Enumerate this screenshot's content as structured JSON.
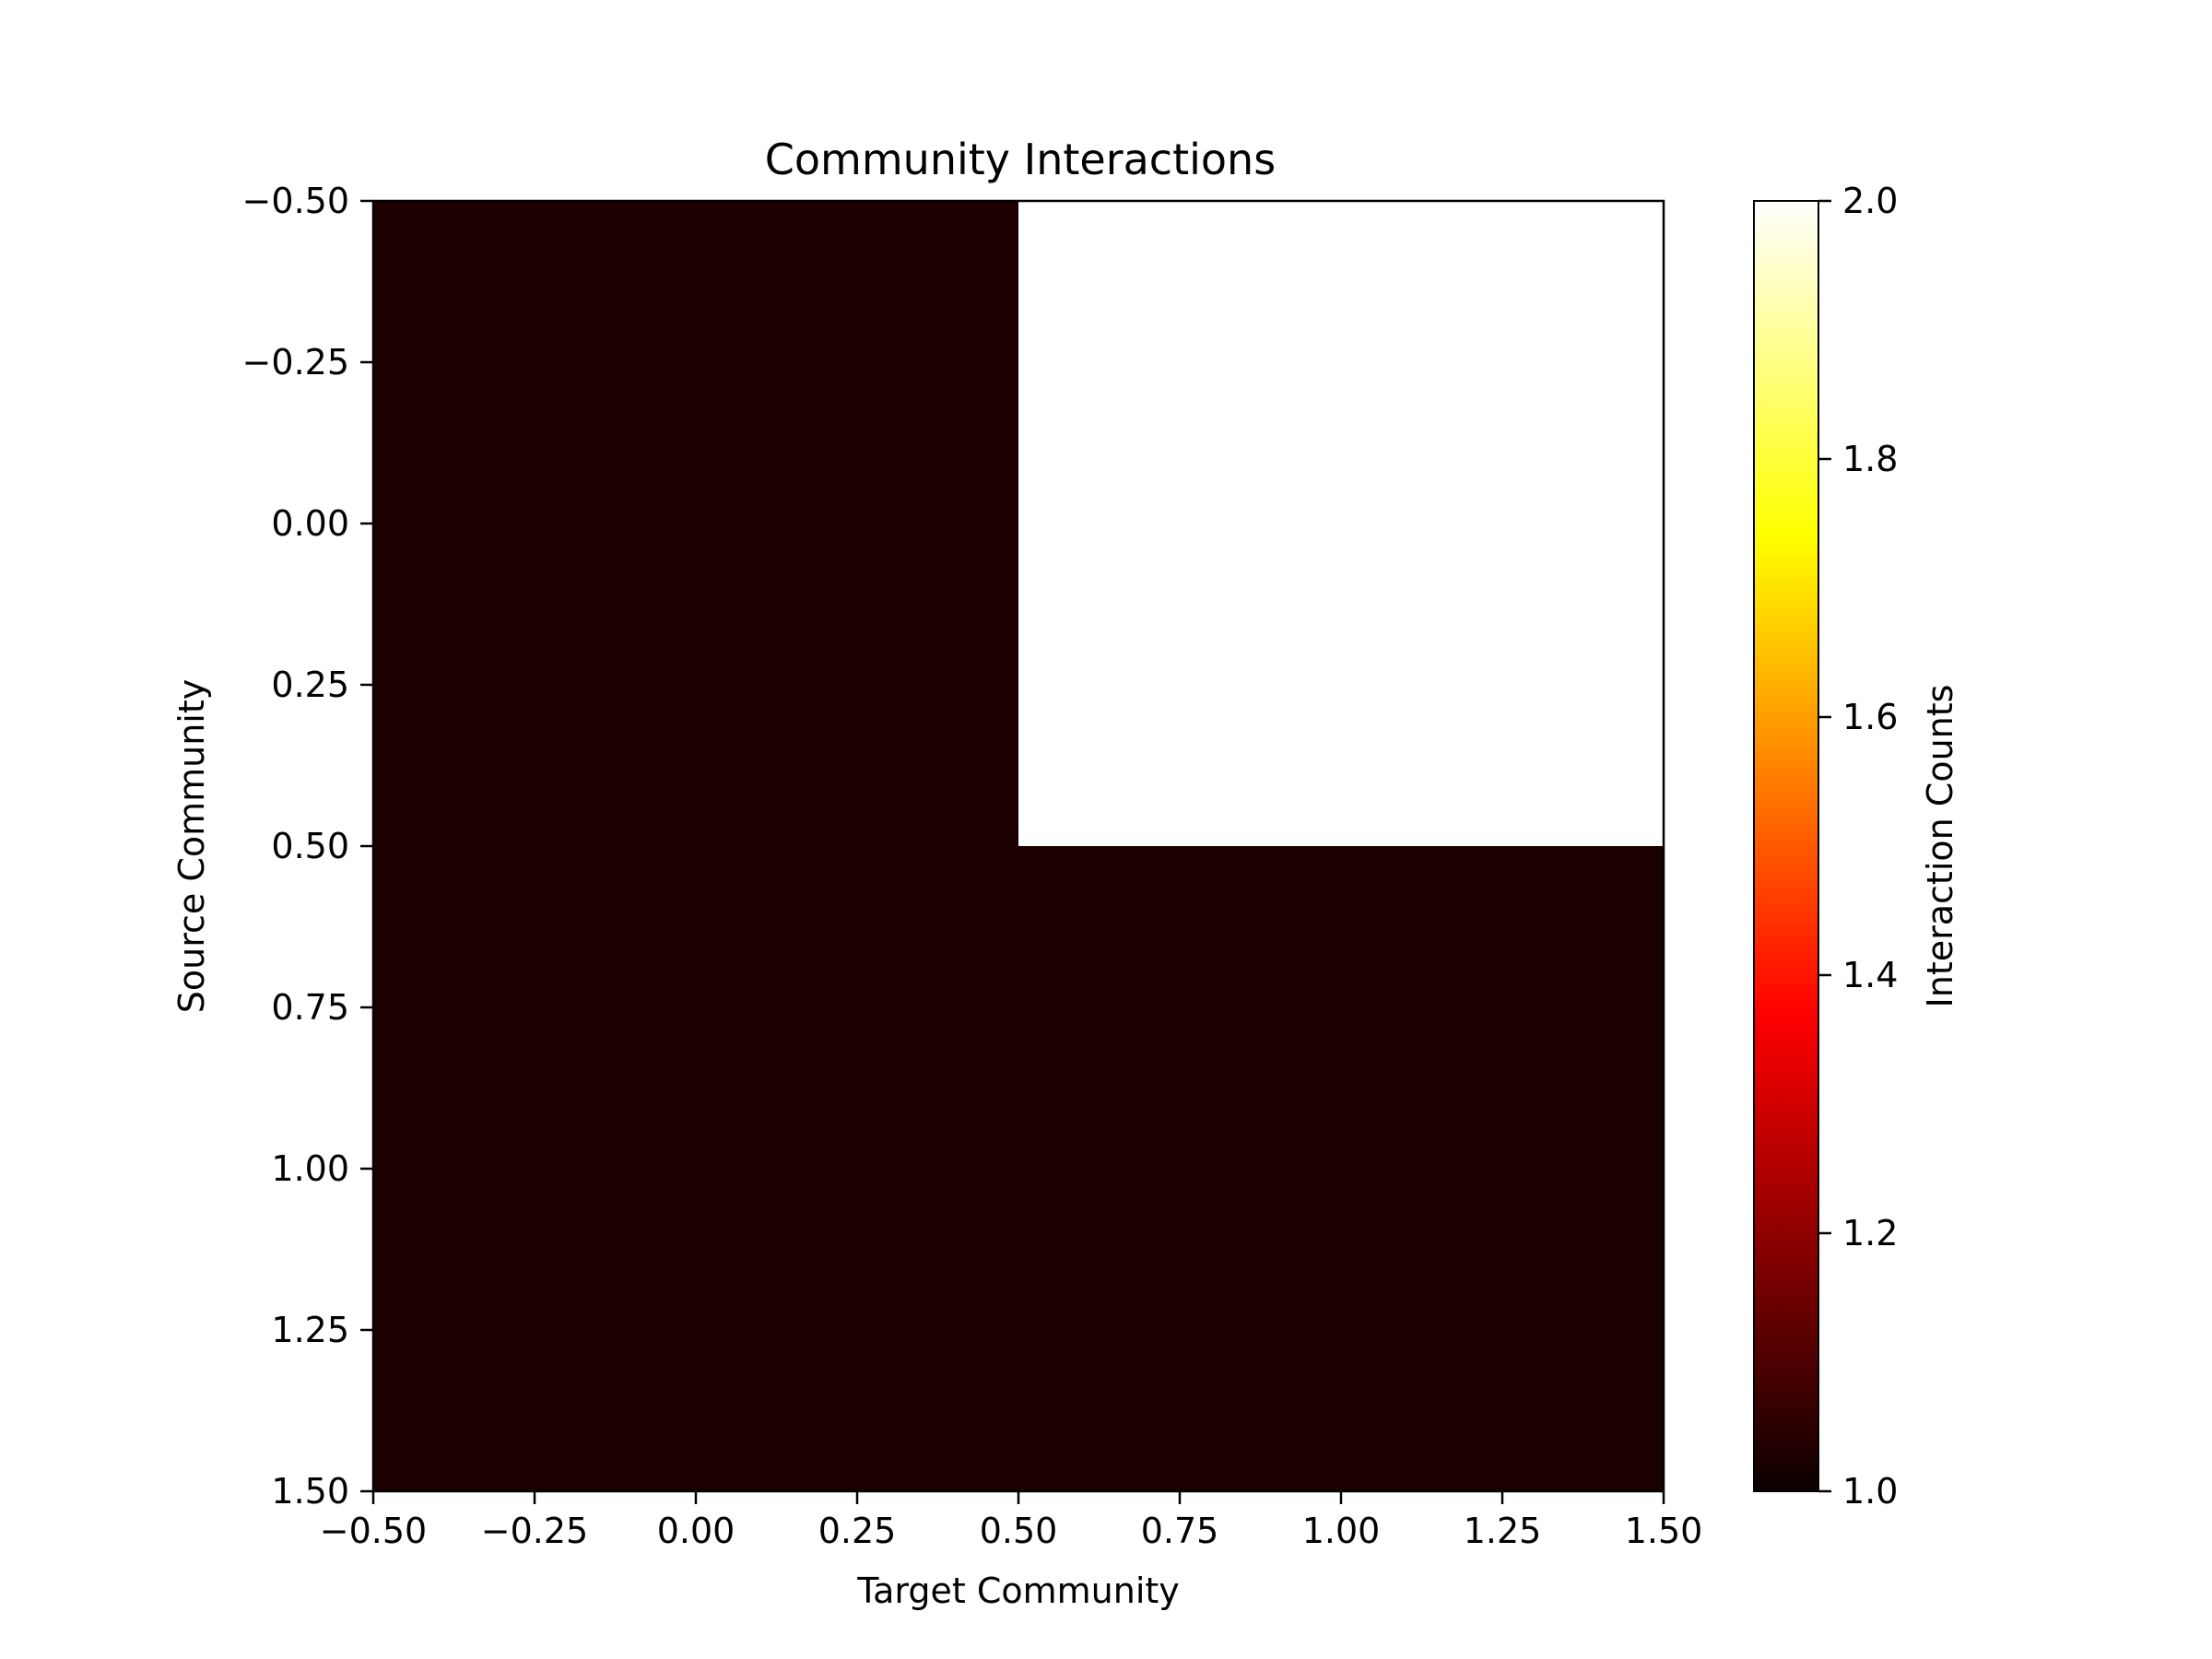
{
  "chart_data": {
    "type": "heatmap",
    "title": "Community Interactions",
    "xlabel": "Target Community",
    "ylabel": "Source Community",
    "xlim": [
      -0.5,
      1.5
    ],
    "ylim": [
      1.5,
      -0.5
    ],
    "x_ticks": [
      "−0.50",
      "−0.25",
      "0.00",
      "0.25",
      "0.50",
      "0.75",
      "1.00",
      "1.25",
      "1.50"
    ],
    "y_ticks": [
      "−0.50",
      "−0.25",
      "0.00",
      "0.25",
      "0.50",
      "0.75",
      "1.00",
      "1.25",
      "1.50"
    ],
    "matrix": [
      [
        1,
        2
      ],
      [
        1,
        1
      ]
    ],
    "colormap": "hot",
    "colorbar": {
      "label": "Interaction Counts",
      "range": [
        1.0,
        2.0
      ],
      "ticks": [
        "1.0",
        "1.2",
        "1.4",
        "1.6",
        "1.8",
        "2.0"
      ]
    },
    "grid": false
  }
}
